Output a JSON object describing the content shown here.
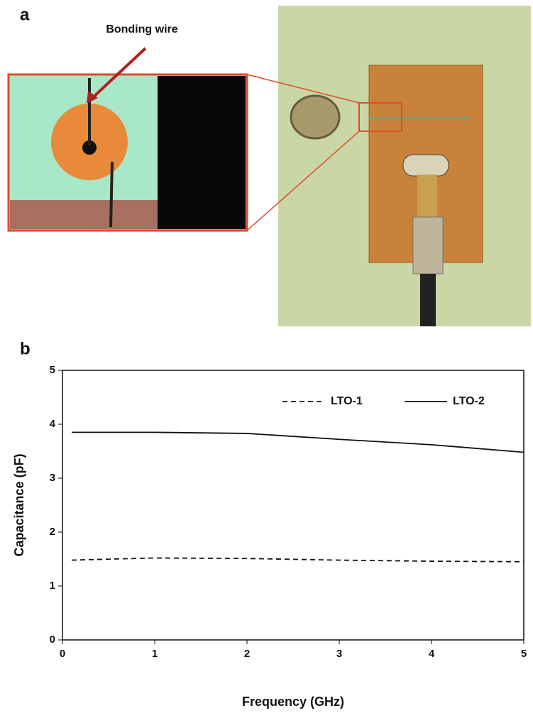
{
  "panel_a": {
    "label": "a",
    "annotation": "Bonding wire"
  },
  "panel_b": {
    "label": "b"
  },
  "chart_data": {
    "type": "line",
    "x_label": "Frequency (GHz)",
    "y_label": "Capacitance (pF)",
    "x": [
      0.1,
      1,
      2,
      3,
      4,
      5
    ],
    "series": [
      {
        "name": "LTO-1",
        "color": "#111111",
        "dash": true,
        "values": [
          1.48,
          1.52,
          1.51,
          1.48,
          1.46,
          1.45
        ]
      },
      {
        "name": "LTO-2",
        "color": "#111111",
        "dash": false,
        "values": [
          3.85,
          3.85,
          3.83,
          3.72,
          3.62,
          3.48
        ]
      }
    ],
    "xlim": [
      0,
      5
    ],
    "xticks": [
      0,
      1,
      2,
      3,
      4,
      5
    ],
    "ylim": [
      0,
      5
    ],
    "yticks": [
      0,
      1,
      2,
      3,
      4,
      5
    ],
    "legend": "top-right",
    "grid": false
  }
}
